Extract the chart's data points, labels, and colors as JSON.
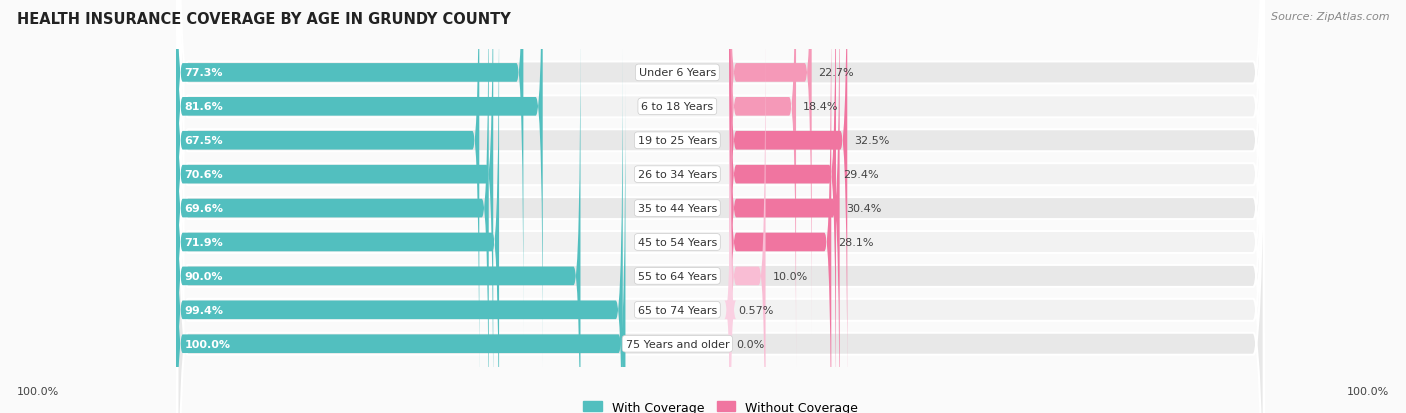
{
  "title": "HEALTH INSURANCE COVERAGE BY AGE IN GRUNDY COUNTY",
  "source": "Source: ZipAtlas.com",
  "categories": [
    "Under 6 Years",
    "6 to 18 Years",
    "19 to 25 Years",
    "26 to 34 Years",
    "35 to 44 Years",
    "45 to 54 Years",
    "55 to 64 Years",
    "65 to 74 Years",
    "75 Years and older"
  ],
  "with_coverage": [
    77.3,
    81.6,
    67.5,
    70.6,
    69.6,
    71.9,
    90.0,
    99.4,
    100.0
  ],
  "without_coverage": [
    22.7,
    18.4,
    32.5,
    29.4,
    30.4,
    28.1,
    10.0,
    0.57,
    0.0
  ],
  "with_coverage_labels": [
    "77.3%",
    "81.6%",
    "67.5%",
    "70.6%",
    "69.6%",
    "71.9%",
    "90.0%",
    "99.4%",
    "100.0%"
  ],
  "without_coverage_labels": [
    "22.7%",
    "18.4%",
    "32.5%",
    "29.4%",
    "30.4%",
    "28.1%",
    "10.0%",
    "0.57%",
    "0.0%"
  ],
  "color_with": "#52BFBF",
  "color_without_bright": "#F075A0",
  "color_without_medium": "#F599B8",
  "color_without_light": "#F9BDD4",
  "color_without_vlight": "#FAD0E2",
  "bg_row_light": "#F2F2F2",
  "bg_row_dark": "#E8E8E8",
  "bg_outer": "#FAFAFA",
  "legend_with": "With Coverage",
  "legend_without": "Without Coverage",
  "x_left_label": "100.0%",
  "x_right_label": "100.0%",
  "without_thresholds": [
    25,
    15,
    5
  ],
  "without_colors": [
    "#F075A0",
    "#F599B8",
    "#F9BDD4",
    "#FAD0E2"
  ]
}
